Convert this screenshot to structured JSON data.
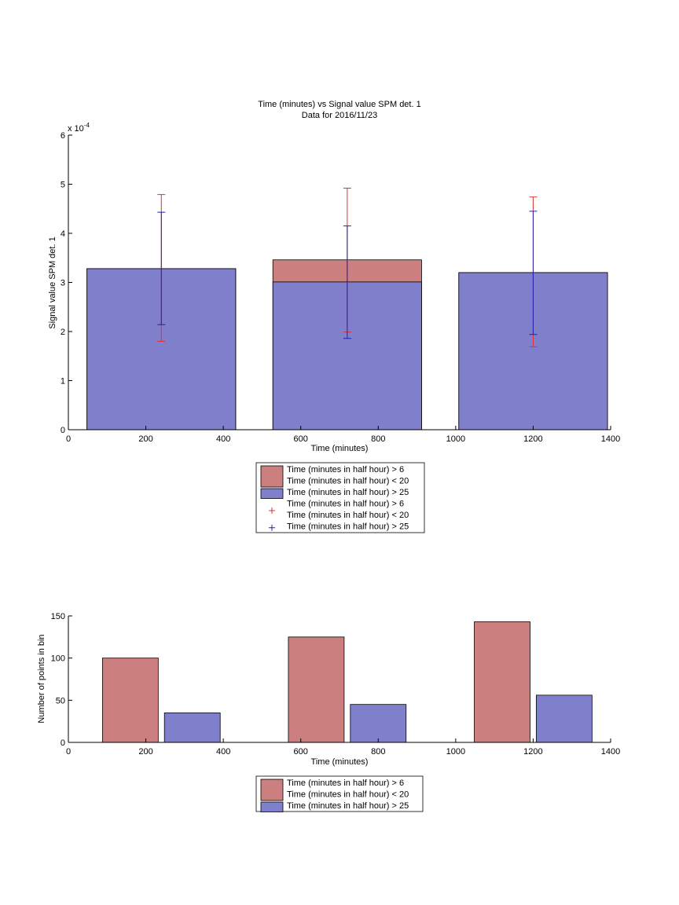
{
  "chart_data": [
    {
      "type": "bar",
      "title": "Time (minutes) vs Signal value SPM det. 1",
      "subtitle": "Data for 2016/11/23",
      "xlabel": "Time (minutes)",
      "ylabel": "Signal value SPM det. 1",
      "y_multiplier": "x 10",
      "y_exponent": "-4",
      "xlim": [
        0,
        1400
      ],
      "ylim": [
        0,
        6
      ],
      "x_ticks": [
        "0",
        "200",
        "400",
        "600",
        "800",
        "1000",
        "1200",
        "1400"
      ],
      "y_ticks": [
        "0",
        "1",
        "2",
        "3",
        "4",
        "5",
        "6"
      ],
      "grid": false,
      "legend_position": "below",
      "x": [
        240,
        720,
        1200
      ],
      "series": [
        {
          "name": "Time (minutes in half hour) > 6\nTime (minutes in half hour) < 20",
          "color": "#cc7f7f",
          "values": [
            3.28,
            3.46,
            3.2
          ],
          "err_low": [
            1.8,
            1.99,
            1.69
          ],
          "err_high": [
            4.79,
            4.92,
            4.74
          ]
        },
        {
          "name": "Time (minutes in half hour) > 25",
          "color": "#7f7fcc",
          "values": [
            3.28,
            3.01,
            3.2
          ],
          "err_low": [
            2.14,
            1.86,
            1.94
          ],
          "err_high": [
            4.43,
            4.15,
            4.45
          ]
        }
      ],
      "legend": [
        {
          "lines": [
            "Time (minutes in half hour) > 6",
            "Time (minutes in half hour) < 20"
          ],
          "kind": "patch",
          "color": "#cc7f7f"
        },
        {
          "lines": [
            "Time (minutes in half hour) > 25"
          ],
          "kind": "patch",
          "color": "#7f7fcc"
        },
        {
          "lines": [
            "Time (minutes in half hour) > 6",
            "Time (minutes in half hour) < 20"
          ],
          "kind": "marker",
          "color": "#e03030"
        },
        {
          "lines": [
            "Time (minutes in half hour) > 25"
          ],
          "kind": "marker",
          "color": "#2020b0"
        }
      ]
    },
    {
      "type": "bar",
      "xlabel": "Time (minutes)",
      "ylabel": "Number of points in bin",
      "xlim": [
        0,
        1400
      ],
      "ylim": [
        0,
        150
      ],
      "x_ticks": [
        "0",
        "200",
        "400",
        "600",
        "800",
        "1000",
        "1200",
        "1400"
      ],
      "y_ticks": [
        "0",
        "50",
        "100",
        "150"
      ],
      "grid": false,
      "legend_position": "below",
      "series": [
        {
          "name": "Time (minutes in half hour) > 6\nTime (minutes in half hour) < 20",
          "color": "#cc7f7f",
          "x": [
            160,
            640,
            1120
          ],
          "values": [
            100,
            125,
            143
          ]
        },
        {
          "name": "Time (minutes in half hour) > 25",
          "color": "#7f7fcc",
          "x": [
            320,
            800,
            1280
          ],
          "values": [
            35,
            45,
            56
          ]
        }
      ],
      "legend": [
        {
          "lines": [
            "Time (minutes in half hour) > 6",
            "Time (minutes in half hour) < 20"
          ],
          "kind": "patch",
          "color": "#cc7f7f"
        },
        {
          "lines": [
            "Time (minutes in half hour) > 25"
          ],
          "kind": "patch",
          "color": "#7f7fcc"
        }
      ]
    }
  ]
}
